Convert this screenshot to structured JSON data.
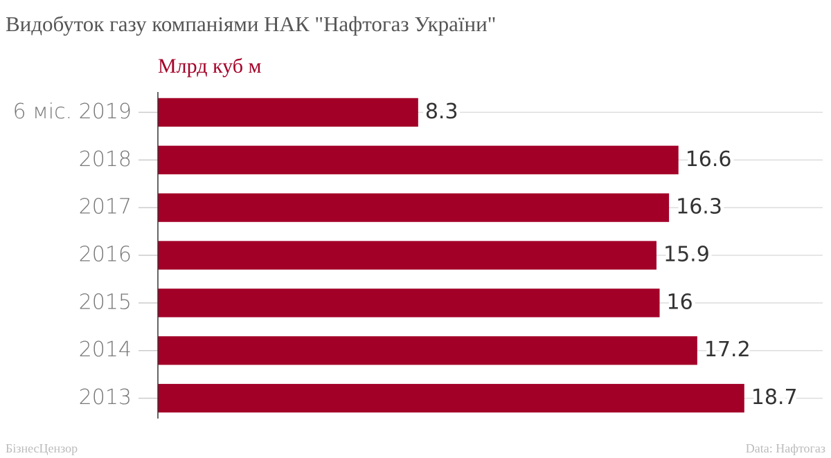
{
  "chart_data": {
    "type": "bar",
    "orientation": "horizontal",
    "title": "Видобуток газу компаніями НАК \"Нафтогаз України\"",
    "subtitle": "Млрд куб м",
    "categories": [
      "6 міс. 2019",
      "2018",
      "2017",
      "2016",
      "2015",
      "2014",
      "2013"
    ],
    "values": [
      8.3,
      16.6,
      16.3,
      15.9,
      16,
      17.2,
      18.7
    ],
    "color": "#a30028",
    "xlim": [
      0,
      21.2
    ],
    "grid": true,
    "credit": "БізнесЦензор",
    "source": "Data: Нафтогаз"
  }
}
